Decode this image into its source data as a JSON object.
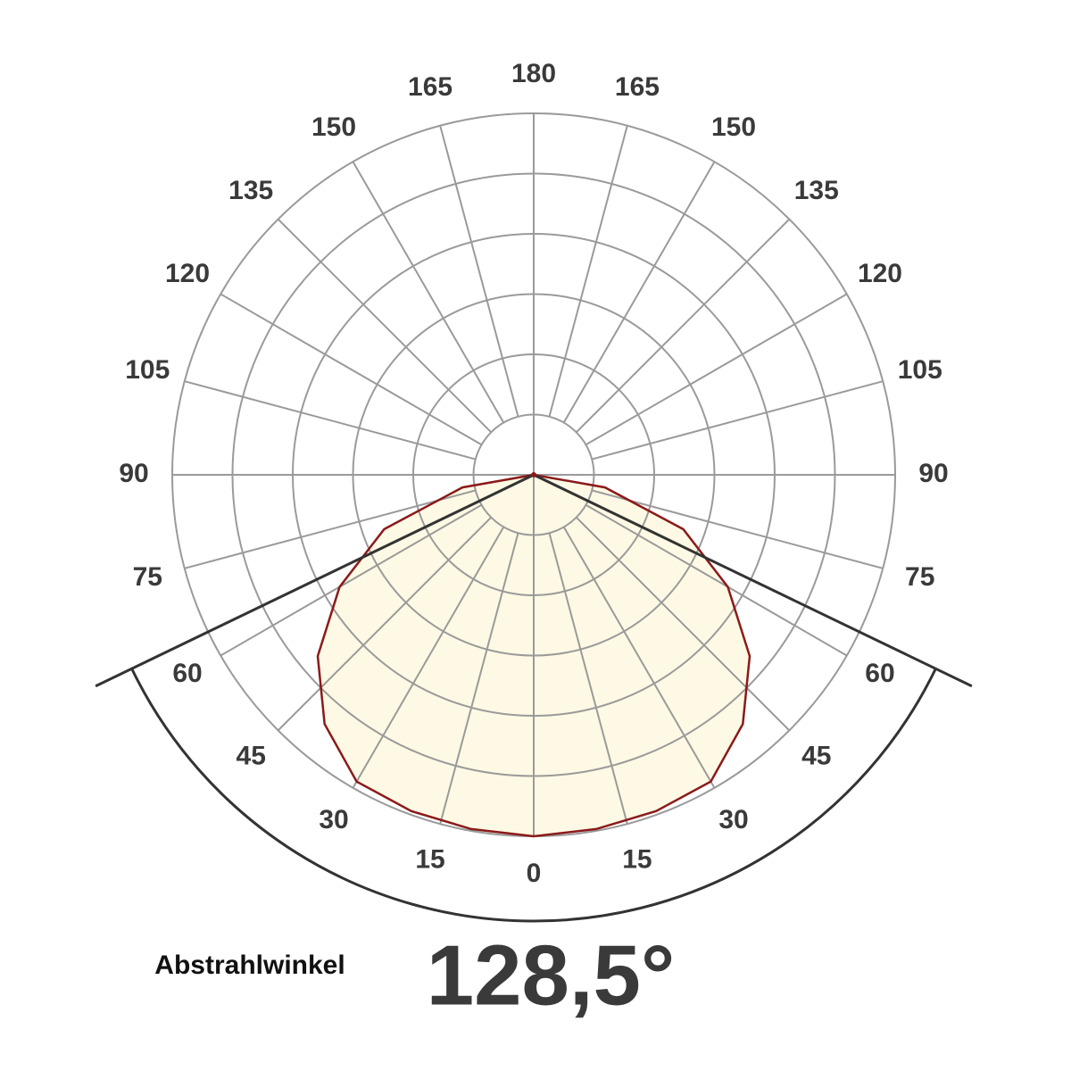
{
  "chart_data": {
    "type": "polar",
    "angle_ticks": [
      0,
      15,
      30,
      45,
      60,
      75,
      90,
      105,
      120,
      135,
      150,
      165,
      180
    ],
    "rlim": [
      0,
      1
    ],
    "x": [
      -90,
      -80,
      -70,
      -60,
      -50,
      -40,
      -30,
      -20,
      -10,
      0,
      10,
      20,
      30,
      40,
      50,
      60,
      70,
      80,
      90
    ],
    "values": [
      0,
      0.2,
      0.44,
      0.62,
      0.78,
      0.9,
      0.98,
      0.99,
      0.995,
      1,
      0.995,
      0.99,
      0.98,
      0.9,
      0.78,
      0.62,
      0.44,
      0.2,
      0
    ],
    "color": "#8b1a1a",
    "fill": "#fdf9e4",
    "beam_label": "Abstrahlwinkel",
    "beam_angle": 128.5,
    "beam_angle_label": "128,5°"
  }
}
